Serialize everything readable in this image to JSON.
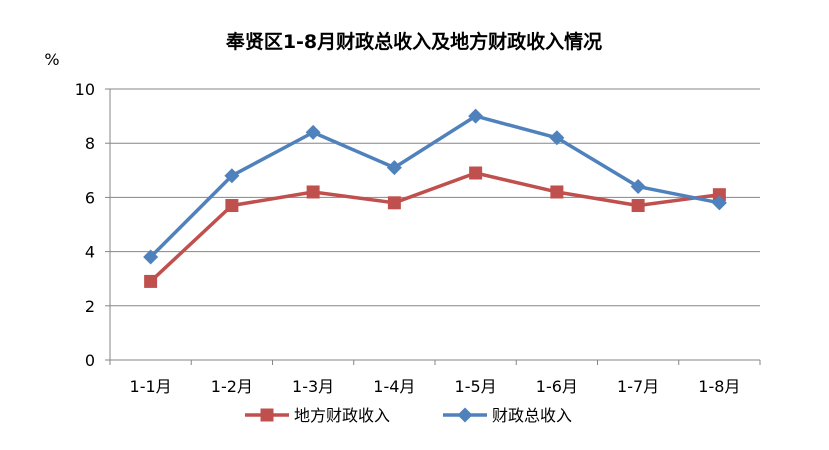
{
  "chart_data": {
    "type": "line",
    "title": "奉贤区1-8月财政总收入及地方财政收入情况",
    "ylabel": "%",
    "xlabel": "",
    "ylim": [
      0,
      10
    ],
    "yticks": [
      "0",
      "2",
      "4",
      "6",
      "8",
      "10"
    ],
    "categories": [
      "1-1月",
      "1-2月",
      "1-3月",
      "1-4月",
      "1-5月",
      "1-6月",
      "1-7月",
      "1-8月"
    ],
    "grid": true,
    "legend_position": "bottom",
    "series": [
      {
        "name": "地方财政收入",
        "color": "#C0504D",
        "marker": "square",
        "values": [
          2.9,
          5.7,
          6.2,
          5.8,
          6.9,
          6.2,
          5.7,
          6.1
        ]
      },
      {
        "name": "财政总收入",
        "color": "#4F81BD",
        "marker": "diamond",
        "values": [
          3.8,
          6.8,
          8.4,
          7.1,
          9.0,
          8.2,
          6.4,
          5.8
        ]
      }
    ]
  }
}
